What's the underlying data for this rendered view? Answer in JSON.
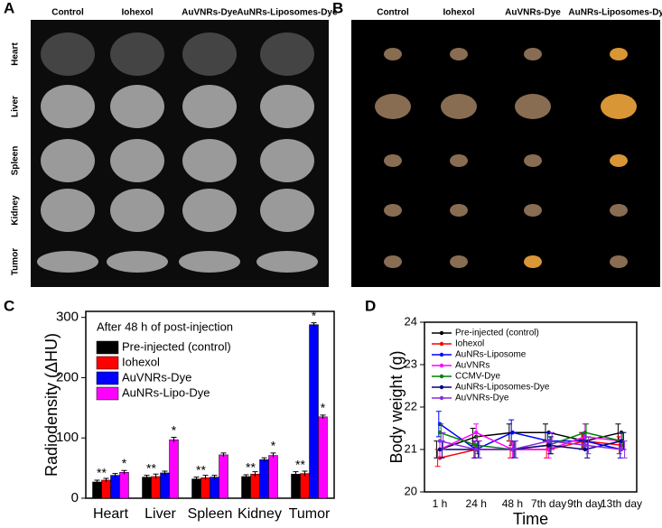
{
  "panel_a": {
    "panel_label": "A",
    "columns": [
      "Control",
      "Iohexol",
      "AuVNRs-Dye",
      "AuNRs-Liposomes-Dye"
    ],
    "rows": [
      "Heart",
      "Liver",
      "Spleen",
      "Kidney",
      "Tumor"
    ]
  },
  "panel_b": {
    "panel_label": "B",
    "columns": [
      "Control",
      "Iohexol",
      "AuVNRs-Dye",
      "AuNRs-Liposomes-Dye"
    ],
    "rows": [
      "Heart",
      "Liver",
      "Spleen",
      "Kidney",
      "Tumor"
    ]
  },
  "chart_data": [
    {
      "type": "bar",
      "panel_label": "C",
      "subtitle": "After 48 h of post-injection",
      "y_label": "Radiodensity (ΔHU)",
      "categories": [
        "Heart",
        "Liver",
        "Spleen",
        "Kidney",
        "Tumor"
      ],
      "series": [
        {
          "name": "Pre-injected (control)",
          "color": "#000000",
          "values": [
            27,
            35,
            32,
            36,
            40
          ],
          "errors": [
            3,
            3,
            3,
            3,
            4
          ]
        },
        {
          "name": "Iohexol",
          "color": "#ff0000",
          "values": [
            30,
            36,
            34,
            40,
            41
          ],
          "errors": [
            3,
            4,
            4,
            4,
            4
          ]
        },
        {
          "name": "AuVNRs-Dye",
          "color": "#0000ff",
          "values": [
            38,
            42,
            35,
            64,
            288
          ],
          "errors": [
            3,
            3,
            3,
            3,
            3
          ]
        },
        {
          "name": "AuNRs-Lipo-Dye",
          "color": "#ff00ff",
          "values": [
            43,
            97,
            72,
            71,
            135
          ],
          "errors": [
            3,
            4,
            3,
            4,
            3
          ]
        }
      ],
      "annotations": [
        {
          "text": "**",
          "category": 0,
          "series": 0
        },
        {
          "text": "*",
          "category": 0,
          "series": 3
        },
        {
          "text": "**",
          "category": 1,
          "series": 0
        },
        {
          "text": "*",
          "category": 1,
          "series": 3
        },
        {
          "text": "**",
          "category": 2,
          "series": 0
        },
        {
          "text": "**",
          "category": 3,
          "series": 0
        },
        {
          "text": "*",
          "category": 3,
          "series": 3
        },
        {
          "text": "**",
          "category": 4,
          "series": 0
        },
        {
          "text": "*",
          "category": 4,
          "series": 2
        },
        {
          "text": "*",
          "category": 4,
          "series": 3
        }
      ],
      "ylim": [
        0,
        310
      ],
      "yticks": [
        0,
        100,
        200,
        300
      ],
      "legend": "upper left"
    },
    {
      "type": "line",
      "panel_label": "D",
      "x_label": "Time",
      "y_label": "Body weight (g)",
      "categories": [
        "1 h",
        "24 h",
        "48 h",
        "7th day",
        "9th day",
        "13th day"
      ],
      "series": [
        {
          "name": "Pre-injected (control)",
          "color": "#000000",
          "values": [
            21.0,
            21.3,
            21.4,
            21.4,
            21.2,
            21.4
          ],
          "errors": [
            0.2,
            0.2,
            0.2,
            0.2,
            0.2,
            0.2
          ]
        },
        {
          "name": "Iohexol",
          "color": "#ff0000",
          "values": [
            20.8,
            21.0,
            21.0,
            21.0,
            21.2,
            21.1
          ],
          "errors": [
            0.2,
            0.2,
            0.2,
            0.2,
            0.2,
            0.2
          ]
        },
        {
          "name": "AuNRs-Liposome",
          "color": "#0000ff",
          "values": [
            21.6,
            21.0,
            21.4,
            21.2,
            21.2,
            21.0
          ],
          "errors": [
            0.3,
            0.2,
            0.3,
            0.2,
            0.2,
            0.2
          ]
        },
        {
          "name": "AuVNRs",
          "color": "#ff00ff",
          "values": [
            21.0,
            21.4,
            21.0,
            21.0,
            21.3,
            21.2
          ],
          "errors": [
            0.2,
            0.2,
            0.2,
            0.2,
            0.3,
            0.2
          ]
        },
        {
          "name": "CCMV-Dye",
          "color": "#008000",
          "values": [
            21.4,
            21.1,
            21.0,
            21.1,
            21.4,
            21.2
          ],
          "errors": [
            0.2,
            0.2,
            0.2,
            0.2,
            0.2,
            0.2
          ]
        },
        {
          "name": "AuNRs-Liposomes-Dye",
          "color": "#000080",
          "values": [
            21.0,
            21.0,
            21.0,
            21.1,
            21.0,
            21.2
          ],
          "errors": [
            0.2,
            0.2,
            0.2,
            0.2,
            0.2,
            0.2
          ]
        },
        {
          "name": "AuVNRs-Dye",
          "color": "#8a2be2",
          "values": [
            21.2,
            21.0,
            21.0,
            21.2,
            21.1,
            21.0
          ],
          "errors": [
            0.2,
            0.2,
            0.2,
            0.2,
            0.2,
            0.2
          ]
        }
      ],
      "ylim": [
        20,
        24
      ],
      "yticks": [
        20,
        21,
        22,
        23,
        24
      ],
      "legend": "upper left"
    }
  ]
}
